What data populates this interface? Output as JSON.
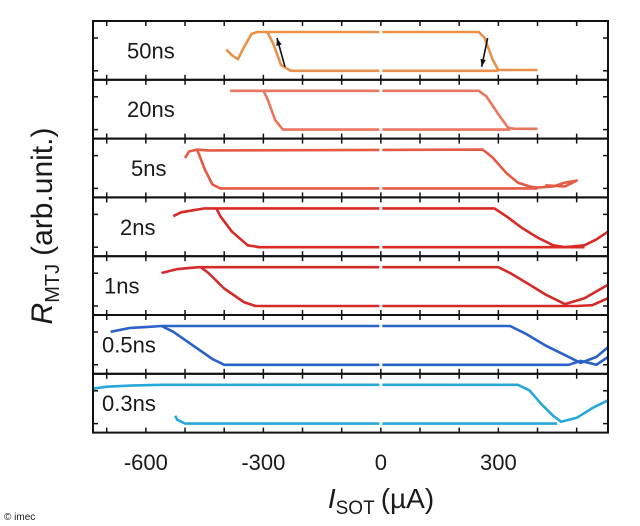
{
  "chart_data": {
    "type": "line",
    "layout": "stacked-panels",
    "xlabel": {
      "symbol": "I",
      "subscript": "SOT",
      "unit": "(µA)"
    },
    "ylabel": {
      "symbol": "R",
      "subscript": "MTJ",
      "unit": "(arb.unit.)"
    },
    "xlim": [
      -735,
      580
    ],
    "ylim": [
      0,
      1
    ],
    "x_ticks": [
      -600,
      -300,
      0,
      300
    ],
    "x_tick_labels": [
      "-600",
      "-300",
      "0",
      "300"
    ],
    "grid": false,
    "panels": [
      {
        "label": "50ns",
        "color": "#e8914a",
        "upper": [
          [
            -395,
            0.55
          ],
          [
            -380,
            0.4
          ],
          [
            -365,
            0.3
          ],
          [
            -350,
            0.6
          ],
          [
            -330,
            0.95
          ],
          [
            -315,
            1
          ],
          [
            250,
            1
          ],
          [
            265,
            0.85
          ],
          [
            285,
            0.3
          ],
          [
            300,
            0.02
          ],
          [
            400,
            0.02
          ]
        ],
        "lower": [
          [
            300,
            0
          ],
          [
            -230,
            0
          ],
          [
            -255,
            0.15
          ],
          [
            -275,
            0.7
          ],
          [
            -290,
            1
          ]
        ],
        "arrows": [
          {
            "x": -255,
            "direction": "up"
          },
          {
            "x": 265,
            "direction": "down"
          }
        ]
      },
      {
        "label": "20ns",
        "color": "#e9765f",
        "upper": [
          [
            -385,
            1
          ],
          [
            250,
            1
          ],
          [
            270,
            0.85
          ],
          [
            300,
            0.4
          ],
          [
            325,
            0.05
          ],
          [
            340,
            0.02
          ],
          [
            400,
            0.02
          ]
        ],
        "lower": [
          [
            330,
            0
          ],
          [
            -250,
            0
          ],
          [
            -270,
            0.25
          ],
          [
            -290,
            0.8
          ],
          [
            -300,
            1
          ]
        ],
        "arrows": []
      },
      {
        "label": "5ns",
        "color": "#e55a45",
        "upper": [
          [
            -500,
            0.78
          ],
          [
            -490,
            0.95
          ],
          [
            -470,
            1
          ],
          [
            -440,
            0.98
          ],
          [
            260,
            1
          ],
          [
            285,
            0.8
          ],
          [
            320,
            0.4
          ],
          [
            350,
            0.15
          ],
          [
            380,
            0.05
          ],
          [
            400,
            0.02
          ],
          [
            440,
            0.05
          ],
          [
            470,
            0.15
          ],
          [
            500,
            0.2
          ],
          [
            470,
            0.05
          ],
          [
            420,
            0.08
          ]
        ],
        "lower": [
          [
            400,
            0
          ],
          [
            -410,
            0
          ],
          [
            -430,
            0.1
          ],
          [
            -450,
            0.5
          ],
          [
            -465,
            0.9
          ],
          [
            -470,
            1
          ]
        ],
        "arrows": []
      },
      {
        "label": "2ns",
        "color": "#d92a25",
        "upper": [
          [
            -530,
            0.8
          ],
          [
            -510,
            0.9
          ],
          [
            -480,
            0.95
          ],
          [
            -450,
            1
          ],
          [
            290,
            1
          ],
          [
            320,
            0.8
          ],
          [
            360,
            0.5
          ],
          [
            400,
            0.25
          ],
          [
            440,
            0.05
          ],
          [
            470,
            0
          ],
          [
            520,
            0.05
          ],
          [
            550,
            0.2
          ],
          [
            580,
            0.4
          ]
        ],
        "lower": [
          [
            520,
            0
          ],
          [
            -310,
            0
          ],
          [
            -340,
            0.05
          ],
          [
            -380,
            0.4
          ],
          [
            -410,
            0.8
          ],
          [
            -420,
            1
          ]
        ],
        "arrows": []
      },
      {
        "label": "1ns",
        "color": "#d42a2a",
        "upper": [
          [
            -560,
            0.85
          ],
          [
            -520,
            0.95
          ],
          [
            -465,
            1
          ],
          [
            300,
            1
          ],
          [
            330,
            0.85
          ],
          [
            380,
            0.55
          ],
          [
            420,
            0.3
          ],
          [
            470,
            0.05
          ],
          [
            520,
            0.2
          ],
          [
            580,
            0.55
          ]
        ],
        "lower": [
          [
            580,
            0.2
          ],
          [
            540,
            0.02
          ],
          [
            500,
            0
          ],
          [
            -320,
            0
          ],
          [
            -350,
            0.1
          ],
          [
            -400,
            0.45
          ],
          [
            -440,
            0.85
          ],
          [
            -460,
            1
          ]
        ],
        "arrows": []
      },
      {
        "label": "0.5ns",
        "color": "#2a62c8",
        "upper": [
          [
            -690,
            0.85
          ],
          [
            -640,
            0.95
          ],
          [
            -590,
            0.98
          ],
          [
            -560,
            1
          ],
          [
            330,
            1
          ],
          [
            370,
            0.8
          ],
          [
            420,
            0.5
          ],
          [
            470,
            0.25
          ],
          [
            510,
            0.05
          ],
          [
            550,
            0.2
          ],
          [
            580,
            0.45
          ]
        ],
        "lower": [
          [
            580,
            0.2
          ],
          [
            550,
            0
          ],
          [
            510,
            0.1
          ],
          [
            480,
            0
          ],
          [
            -400,
            0
          ],
          [
            -430,
            0.15
          ],
          [
            -480,
            0.5
          ],
          [
            -530,
            0.85
          ],
          [
            -560,
            1
          ]
        ],
        "arrows": []
      },
      {
        "label": "0.3ns",
        "color": "#28a8d8",
        "upper": [
          [
            -735,
            0.9
          ],
          [
            -700,
            0.95
          ],
          [
            -640,
            0.98
          ],
          [
            -560,
            1
          ],
          [
            350,
            1
          ],
          [
            380,
            0.85
          ],
          [
            410,
            0.5
          ],
          [
            440,
            0.2
          ],
          [
            460,
            0.05
          ],
          [
            500,
            0.15
          ],
          [
            540,
            0.4
          ],
          [
            580,
            0.6
          ]
        ],
        "lower": [
          [
            450,
            0
          ],
          [
            -500,
            0
          ],
          [
            -520,
            0.1
          ],
          [
            -525,
            0.2
          ]
        ],
        "arrows": []
      }
    ]
  },
  "copyright": "© imec"
}
